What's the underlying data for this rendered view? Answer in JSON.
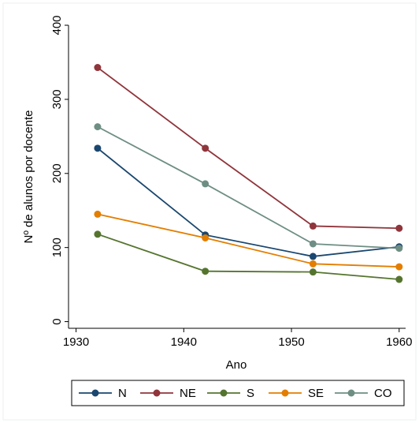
{
  "chart_data": {
    "type": "line",
    "x_label": "Ano",
    "y_label": "Nº de alunos por docente",
    "x": [
      1932,
      1942,
      1952,
      1960
    ],
    "xlim": [
      1929.3,
      1960.6
    ],
    "xticks": [
      1930,
      1940,
      1950,
      1960
    ],
    "ylim": [
      -9,
      400
    ],
    "yticks": [
      0,
      100,
      200,
      300,
      400
    ],
    "legend": "bottom",
    "series": [
      {
        "name": "N",
        "color": "#1a476f",
        "values": [
          234,
          117,
          88,
          101
        ]
      },
      {
        "name": "NE",
        "color": "#90353b",
        "values": [
          343,
          234,
          129,
          126
        ]
      },
      {
        "name": "S",
        "color": "#55752f",
        "values": [
          118,
          68,
          67,
          57
        ]
      },
      {
        "name": "SE",
        "color": "#e37e00",
        "values": [
          145,
          113,
          78,
          74
        ]
      },
      {
        "name": "CO",
        "color": "#6e8e84",
        "values": [
          263,
          186,
          105,
          99
        ]
      }
    ]
  }
}
